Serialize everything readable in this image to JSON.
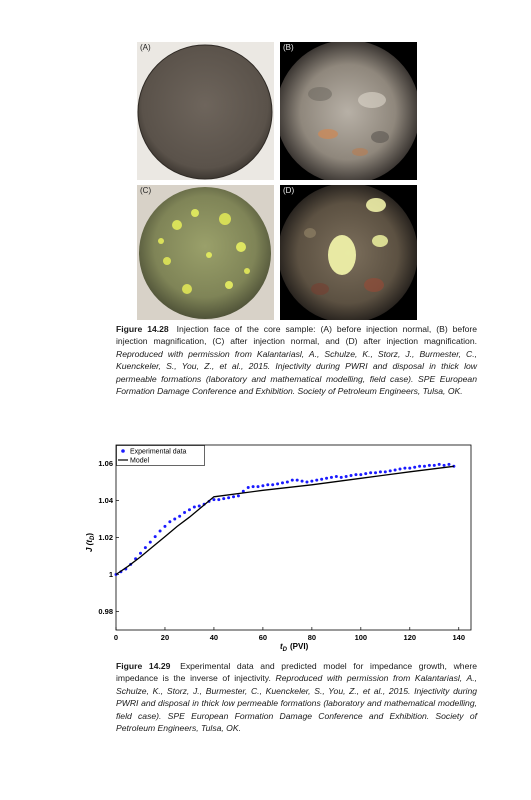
{
  "figure_28": {
    "panels": [
      {
        "label": "(A)",
        "icon": "core-face-before-normal"
      },
      {
        "label": "(B)",
        "icon": "core-face-before-magnified"
      },
      {
        "label": "(C)",
        "icon": "core-face-after-normal"
      },
      {
        "label": "(D)",
        "icon": "core-face-after-magnified"
      }
    ],
    "caption": {
      "label": "Figure 14.28",
      "text": "Injection face of the core sample: (A) before injection normal, (B) before injection magnification, (C) after injection normal, and (D) after injection magnification.",
      "credit": "Reproduced with permission from Kalantariasl, A., Schulze, K., Storz, J., Burmester, C., Kuenckeler, S., You, Z., et al., 2015. Injectivity during PWRI and disposal in thick low permeable formations (laboratory and mathematical modelling, field case). SPE European Formation Damage Conference and Exhibition. Society of Petroleum Engineers, Tulsa, OK."
    }
  },
  "figure_29": {
    "caption": {
      "label": "Figure 14.29",
      "text": "Experimental data and predicted model for impedance growth, where impedance is the inverse of injectivity.",
      "credit": "Reproduced with permission from Kalantariasl, A., Schulze, K., Storz, J., Burmester, C., Kuenckeler, S., You, Z., et al., 2015. Injectivity during PWRI and disposal in thick low permeable formations (laboratory and mathematical modelling, field case). SPE European Formation Damage Conference and Exhibition. Society of Petroleum Engineers, Tulsa, OK."
    }
  },
  "chart_data": {
    "type": "line",
    "xlabel_main": "t",
    "xlabel_sub": "D",
    "xlabel_unit": "(PVI)",
    "ylabel_main": "J (t",
    "ylabel_sub": "D",
    "ylabel_close": ")",
    "xlim": [
      0,
      145
    ],
    "ylim": [
      0.97,
      1.07
    ],
    "x_ticks": [
      0,
      20,
      40,
      60,
      80,
      100,
      120,
      140
    ],
    "y_ticks": [
      0.98,
      1,
      1.02,
      1.04,
      1.06
    ],
    "y_tick_labels": [
      "0.98",
      "1",
      "1.02",
      "1.04",
      "1.06"
    ],
    "grid": false,
    "legend_position": "top-left",
    "series": [
      {
        "name": "Experimental data",
        "style": "markers",
        "color": "#1a1aff",
        "x": [
          0,
          2,
          4,
          6,
          8,
          10,
          12,
          14,
          16,
          18,
          20,
          22,
          24,
          26,
          28,
          30,
          32,
          34,
          36,
          38,
          40,
          42,
          44,
          46,
          48,
          50,
          52,
          54,
          56,
          58,
          60,
          62,
          64,
          66,
          68,
          70,
          72,
          74,
          76,
          78,
          80,
          82,
          84,
          86,
          88,
          90,
          92,
          94,
          96,
          98,
          100,
          102,
          104,
          106,
          108,
          110,
          112,
          114,
          116,
          118,
          120,
          122,
          124,
          126,
          128,
          130,
          132,
          134,
          136,
          138
        ],
        "y": [
          1.0,
          1.0015,
          1.003,
          1.0055,
          1.0085,
          1.0115,
          1.0145,
          1.0175,
          1.0205,
          1.0235,
          1.026,
          1.0285,
          1.03,
          1.0315,
          1.0335,
          1.035,
          1.0365,
          1.037,
          1.038,
          1.0395,
          1.0405,
          1.0405,
          1.041,
          1.0415,
          1.042,
          1.0425,
          1.045,
          1.047,
          1.0475,
          1.0475,
          1.048,
          1.0485,
          1.0485,
          1.049,
          1.0495,
          1.05,
          1.051,
          1.051,
          1.0505,
          1.05,
          1.0505,
          1.051,
          1.0515,
          1.052,
          1.0525,
          1.053,
          1.0525,
          1.053,
          1.0535,
          1.054,
          1.054,
          1.0545,
          1.055,
          1.055,
          1.0555,
          1.0555,
          1.056,
          1.0565,
          1.057,
          1.0575,
          1.0575,
          1.058,
          1.0585,
          1.0585,
          1.059,
          1.059,
          1.0595,
          1.059,
          1.0595,
          1.0585
        ]
      },
      {
        "name": "Model",
        "style": "line",
        "color": "#000000",
        "x": [
          0,
          5,
          10,
          15,
          20,
          25,
          30,
          35,
          40,
          60,
          80,
          100,
          120,
          138
        ],
        "y": [
          1.0,
          1.0045,
          1.0095,
          1.015,
          1.0205,
          1.026,
          1.031,
          1.0365,
          1.042,
          1.0455,
          1.0485,
          1.052,
          1.0555,
          1.0585
        ]
      }
    ]
  }
}
